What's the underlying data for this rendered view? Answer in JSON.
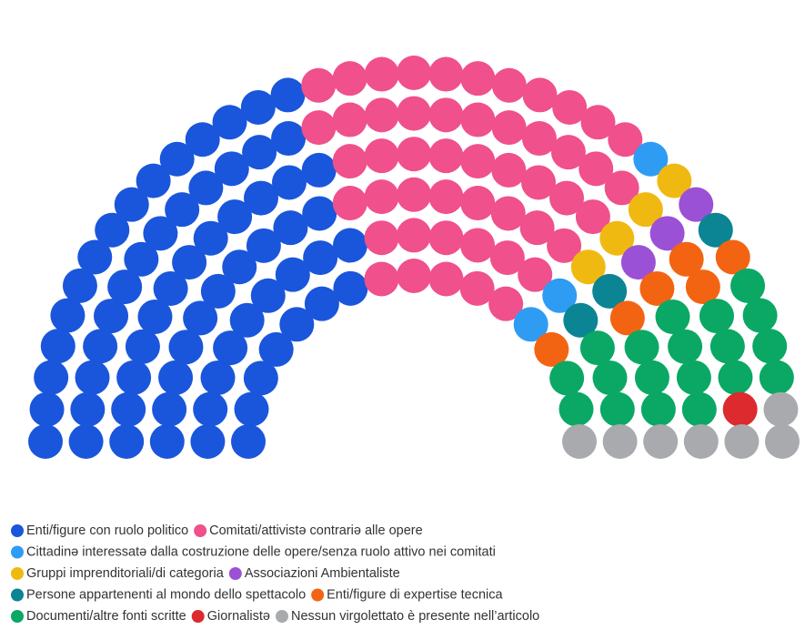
{
  "chart_data": {
    "type": "parliament",
    "series": [
      {
        "name": "Enti/figure con ruolo politico",
        "color": "#1a56db",
        "values": [
          66
        ]
      },
      {
        "name": "Comitati/attivistə contrariə alle opere",
        "color": "#f0508c",
        "values": [
          50
        ]
      },
      {
        "name": "Cittadinə interessatə dalla costruzione delle opere/senza ruolo attivo nei comitati",
        "color": "#2f9cf4",
        "values": [
          3
        ]
      },
      {
        "name": "Gruppi imprenditoriali/di categoria",
        "color": "#f0b912",
        "values": [
          4
        ]
      },
      {
        "name": "Associazioni Ambientaliste",
        "color": "#9b51d6",
        "values": [
          3
        ]
      },
      {
        "name": "Persone appartenenti al mondo dello spettacolo",
        "color": "#0b8494",
        "values": [
          3
        ]
      },
      {
        "name": "Enti/figure di expertise tecnica",
        "color": "#f36412",
        "values": [
          6
        ]
      },
      {
        "name": "Documenti/altre fonti scritte",
        "color": "#0aa864",
        "values": [
          19
        ]
      },
      {
        "name": "Giornalistə",
        "color": "#dc2a2e",
        "values": [
          1
        ]
      },
      {
        "name": "Nessun virgolettato è presente nell’articolo",
        "color": "#a8aaae",
        "values": [
          7
        ]
      }
    ]
  }
}
